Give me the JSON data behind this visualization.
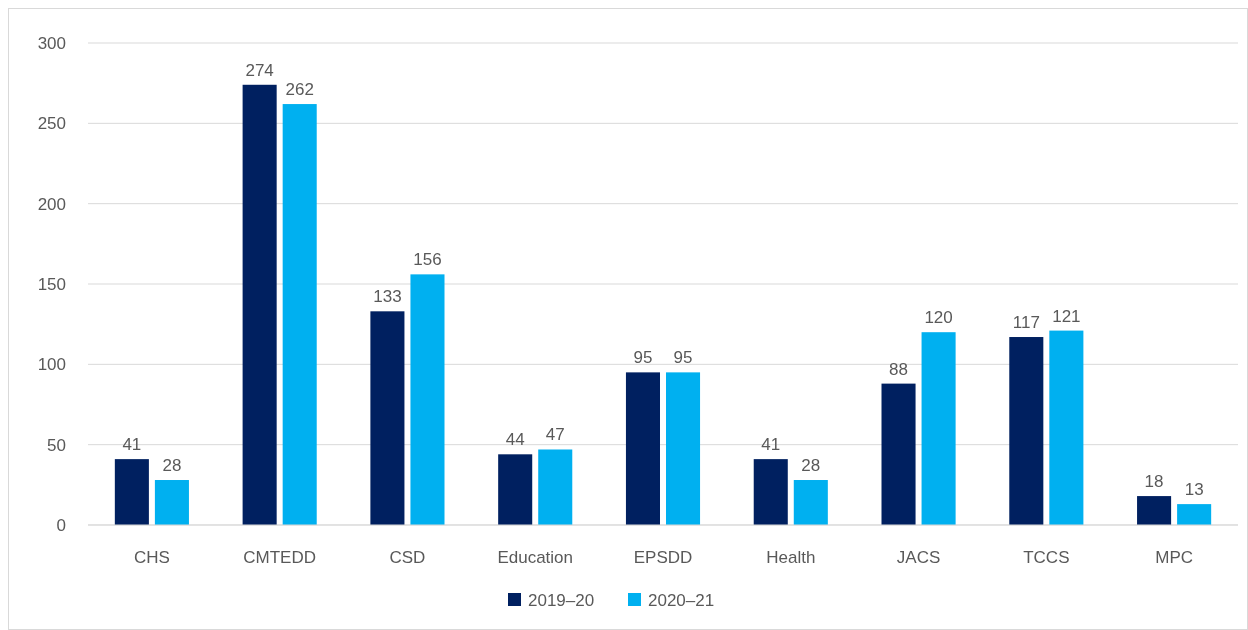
{
  "chart_data": {
    "type": "bar",
    "categories": [
      "CHS",
      "CMTEDD",
      "CSD",
      "Education",
      "EPSDD",
      "Health",
      "JACS",
      "TCCS",
      "MPC"
    ],
    "series": [
      {
        "name": "2019–20",
        "color": "#002060",
        "values": [
          41,
          274,
          133,
          44,
          95,
          41,
          88,
          117,
          18
        ]
      },
      {
        "name": "2020–21",
        "color": "#00b0f0",
        "values": [
          28,
          262,
          156,
          47,
          95,
          28,
          120,
          121,
          13
        ]
      }
    ],
    "ylim": [
      0,
      300
    ],
    "yticks": [
      0,
      50,
      100,
      150,
      200,
      250,
      300
    ],
    "grid": "y",
    "legend": "bottom",
    "data_labels": true
  }
}
